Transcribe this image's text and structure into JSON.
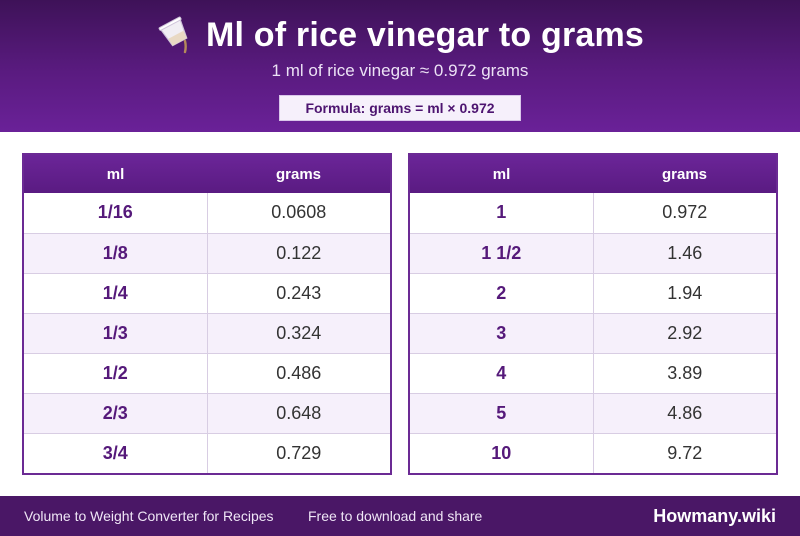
{
  "header": {
    "title": "Ml of rice vinegar to grams",
    "title_icon": "pouring-cup-icon",
    "subtitle": "1 ml of rice vinegar ≈ 0.972 grams",
    "formula": "Formula: grams = ml × 0.972"
  },
  "tables": [
    {
      "headers": {
        "ml": "ml",
        "grams": "grams"
      },
      "rows": [
        {
          "ml": "1/16",
          "grams": "0.0608"
        },
        {
          "ml": "1/8",
          "grams": "0.122"
        },
        {
          "ml": "1/4",
          "grams": "0.243"
        },
        {
          "ml": "1/3",
          "grams": "0.324"
        },
        {
          "ml": "1/2",
          "grams": "0.486"
        },
        {
          "ml": "2/3",
          "grams": "0.648"
        },
        {
          "ml": "3/4",
          "grams": "0.729"
        }
      ]
    },
    {
      "headers": {
        "ml": "ml",
        "grams": "grams"
      },
      "rows": [
        {
          "ml": "1",
          "grams": "0.972"
        },
        {
          "ml": "1 1/2",
          "grams": "1.46"
        },
        {
          "ml": "2",
          "grams": "1.94"
        },
        {
          "ml": "3",
          "grams": "2.92"
        },
        {
          "ml": "4",
          "grams": "3.89"
        },
        {
          "ml": "5",
          "grams": "4.86"
        },
        {
          "ml": "10",
          "grams": "9.72"
        }
      ]
    }
  ],
  "footer": {
    "left_text": "Volume to Weight Converter for Recipes",
    "mid_text": "Free to download and share",
    "brand": "Howmany.wiki"
  },
  "colors": {
    "header_purple": "#5a1b80",
    "accent_text": "#55197a",
    "alt_row": "#f6f0fb",
    "footer": "#4a1766"
  }
}
